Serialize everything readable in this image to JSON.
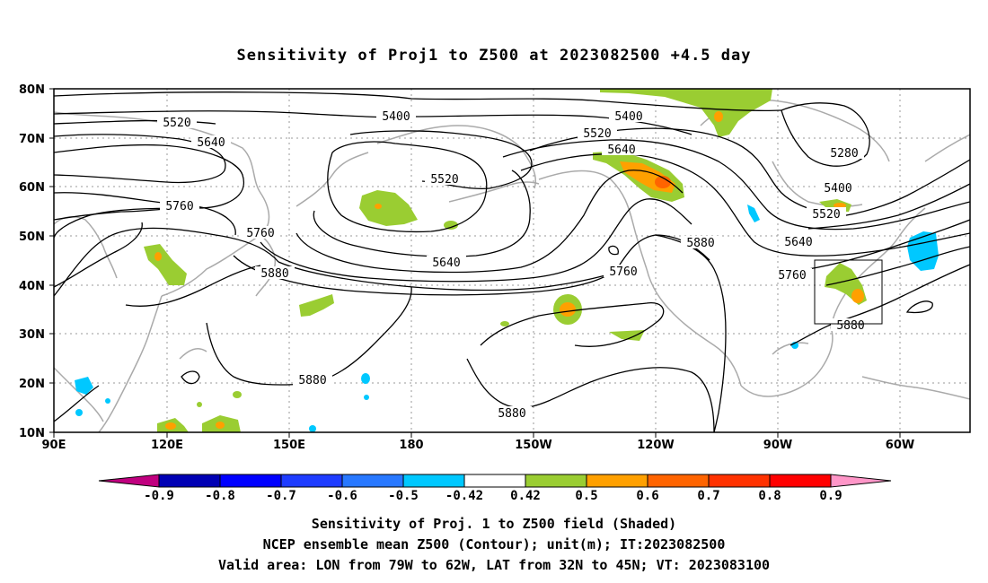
{
  "title": "Sensitivity of Proj1 to Z500 at 2023082500 +4.5 day",
  "map": {
    "lon_ticks": [
      "90E",
      "120E",
      "150E",
      "180",
      "150W",
      "120W",
      "90W",
      "60W"
    ],
    "lat_ticks": [
      "80N",
      "70N",
      "60N",
      "50N",
      "40N",
      "30N",
      "20N",
      "10N"
    ],
    "contour_labels": [
      "5400",
      "5400",
      "5520",
      "5520",
      "5640",
      "5640",
      "5520",
      "5280",
      "5760",
      "5760",
      "5640",
      "5880",
      "5640",
      "5400",
      "5520",
      "5880",
      "5760",
      "5760",
      "5880",
      "5880",
      "5880"
    ],
    "contour_color": "#000000",
    "coast_color": "#aaaaaa",
    "grid": true
  },
  "colorbar": {
    "colors": [
      "#c0007f",
      "#0000b4",
      "#0000ff",
      "#1e3cff",
      "#2878ff",
      "#00c8ff",
      "#ffffff",
      "#9acd32",
      "#ffa000",
      "#ff6400",
      "#ff3200",
      "#ff0000",
      "#ff96c8"
    ],
    "labels": [
      "-0.9",
      "-0.8",
      "-0.7",
      "-0.6",
      "-0.5",
      "-0.42",
      "0.42",
      "0.5",
      "0.6",
      "0.7",
      "0.8",
      "0.9"
    ]
  },
  "caption": {
    "line1": "Sensitivity of Proj. 1 to Z500 field (Shaded)",
    "line2": "NCEP ensemble mean Z500 (Contour); unit(m); IT:2023082500",
    "line3": "Valid area: LON from 79W to 62W, LAT from 32N to 45N; VT: 2023083100"
  }
}
